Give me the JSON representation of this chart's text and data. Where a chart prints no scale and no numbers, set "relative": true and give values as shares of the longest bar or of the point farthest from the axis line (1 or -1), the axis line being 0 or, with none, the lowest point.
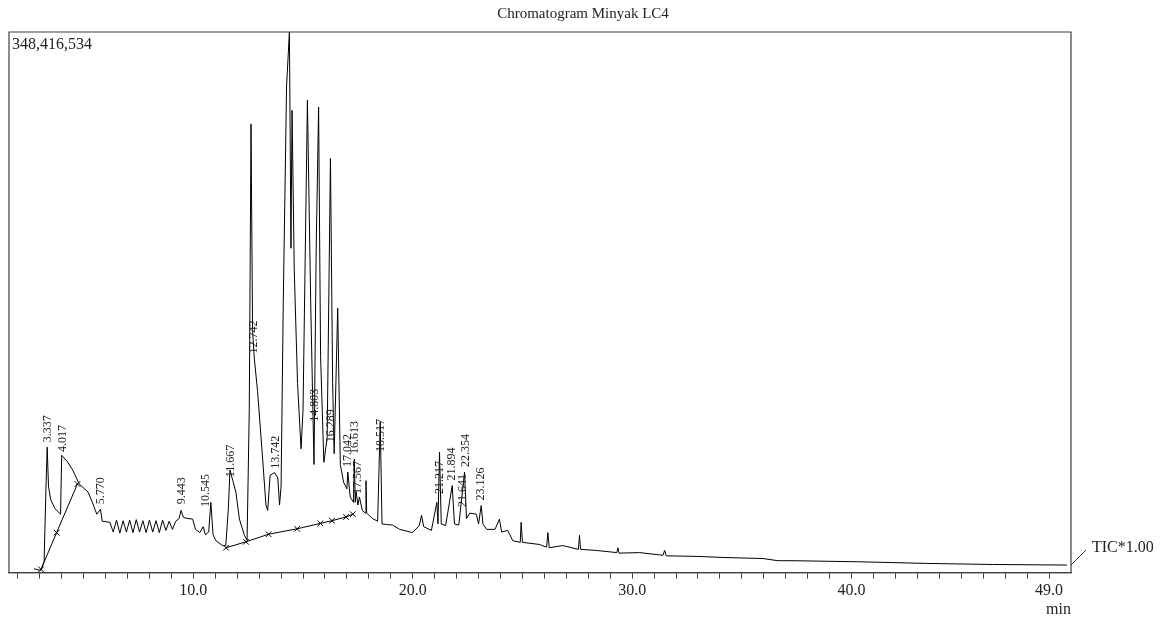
{
  "chart_data": {
    "type": "line",
    "title": "Chromatogram Minyak LC4",
    "xlabel": "min",
    "relative": true,
    "xlim": [
      1.6,
      50
    ],
    "xticks": [
      {
        "value": 2,
        "label": null
      },
      {
        "value": 3,
        "label": null
      },
      {
        "value": 4,
        "label": null
      },
      {
        "value": 5,
        "label": null
      },
      {
        "value": 6,
        "label": null
      },
      {
        "value": 7,
        "label": null
      },
      {
        "value": 8,
        "label": null
      },
      {
        "value": 9,
        "label": null
      },
      {
        "value": 10,
        "label": "10.0"
      },
      {
        "value": 11,
        "label": null
      },
      {
        "value": 12,
        "label": null
      },
      {
        "value": 13,
        "label": null
      },
      {
        "value": 14,
        "label": null
      },
      {
        "value": 15,
        "label": null
      },
      {
        "value": 16,
        "label": null
      },
      {
        "value": 17,
        "label": null
      },
      {
        "value": 18,
        "label": null
      },
      {
        "value": 19,
        "label": null
      },
      {
        "value": 20,
        "label": "20.0"
      },
      {
        "value": 21,
        "label": null
      },
      {
        "value": 22,
        "label": null
      },
      {
        "value": 23,
        "label": null
      },
      {
        "value": 24,
        "label": null
      },
      {
        "value": 25,
        "label": null
      },
      {
        "value": 26,
        "label": null
      },
      {
        "value": 27,
        "label": null
      },
      {
        "value": 28,
        "label": null
      },
      {
        "value": 29,
        "label": null
      },
      {
        "value": 30,
        "label": "30.0"
      },
      {
        "value": 31,
        "label": null
      },
      {
        "value": 32,
        "label": null
      },
      {
        "value": 33,
        "label": null
      },
      {
        "value": 34,
        "label": null
      },
      {
        "value": 35,
        "label": null
      },
      {
        "value": 36,
        "label": null
      },
      {
        "value": 37,
        "label": null
      },
      {
        "value": 38,
        "label": null
      },
      {
        "value": 39,
        "label": null
      },
      {
        "value": 40,
        "label": "40.0"
      },
      {
        "value": 41,
        "label": null
      },
      {
        "value": 42,
        "label": null
      },
      {
        "value": 43,
        "label": null
      },
      {
        "value": 44,
        "label": null
      },
      {
        "value": 45,
        "label": null
      },
      {
        "value": 46,
        "label": null
      },
      {
        "value": 47,
        "label": null
      },
      {
        "value": 48,
        "label": null
      },
      {
        "value": 49,
        "label": "49.0"
      }
    ],
    "series": [
      {
        "name": "TIC*1.00",
        "color": "#000000",
        "x": [
          2.75,
          3.05,
          3.2,
          3.28,
          3.34,
          3.4,
          3.5,
          3.7,
          3.95,
          4.0,
          4.28,
          4.5,
          4.8,
          5.2,
          5.4,
          5.6,
          5.77,
          5.85,
          6.2,
          6.35,
          6.5,
          6.65,
          6.8,
          6.95,
          7.1,
          7.25,
          7.4,
          7.55,
          7.7,
          7.85,
          8.0,
          8.15,
          8.3,
          8.45,
          8.6,
          8.75,
          8.9,
          9.05,
          9.2,
          9.35,
          9.44,
          9.55,
          9.75,
          9.97,
          10.1,
          10.3,
          10.45,
          10.55,
          10.7,
          10.8,
          10.9,
          11.03,
          11.33,
          11.48,
          11.6,
          11.67,
          11.8,
          11.94,
          12.1,
          12.33,
          12.45,
          12.55,
          12.63,
          12.7,
          12.78,
          12.93,
          13.16,
          13.31,
          13.39,
          13.5,
          13.7,
          13.85,
          13.93,
          14.0,
          14.1,
          14.25,
          14.38,
          14.45,
          14.5,
          14.6,
          14.75,
          14.91,
          15.0,
          15.2,
          15.35,
          15.5,
          15.6,
          15.71,
          15.8,
          15.95,
          16.1,
          16.25,
          16.35,
          16.42,
          16.58,
          16.7,
          16.85,
          17.0,
          17.04,
          17.15,
          17.3,
          17.34,
          17.38,
          17.42,
          17.5,
          17.57,
          17.7,
          17.84,
          17.87,
          17.9,
          18.17,
          18.4,
          18.52,
          18.6,
          18.8,
          19.08,
          19.4,
          19.99,
          20.3,
          20.4,
          20.5,
          20.85,
          21.1,
          21.15,
          21.22,
          21.3,
          21.5,
          21.8,
          21.9,
          22.1,
          22.36,
          22.45,
          22.6,
          22.9,
          23.0,
          23.12,
          23.2,
          23.37,
          23.75,
          23.95,
          24.05,
          24.33,
          24.56,
          24.9,
          24.94,
          25.0,
          25.78,
          26.1,
          26.16,
          26.22,
          26.84,
          27.55,
          27.6,
          27.65,
          28.36,
          29.3,
          29.35,
          29.4,
          30.34,
          31.4,
          31.48,
          31.55,
          32.92,
          34.13,
          35.96,
          36.64,
          37.33,
          40.37,
          43.4,
          46.43,
          49.8
        ],
        "values": [
          0.007,
          0.004,
          0.02,
          0.15,
          0.232,
          0.16,
          0.135,
          0.118,
          0.108,
          0.217,
          0.204,
          0.19,
          0.164,
          0.149,
          0.13,
          0.108,
          0.117,
          0.095,
          0.093,
          0.075,
          0.097,
          0.073,
          0.096,
          0.075,
          0.097,
          0.074,
          0.098,
          0.075,
          0.096,
          0.074,
          0.097,
          0.075,
          0.096,
          0.074,
          0.097,
          0.078,
          0.095,
          0.08,
          0.095,
          0.1,
          0.115,
          0.102,
          0.1,
          0.099,
          0.08,
          0.074,
          0.085,
          0.07,
          0.075,
          0.13,
          0.07,
          0.059,
          0.05,
          0.05,
          0.12,
          0.19,
          0.17,
          0.149,
          0.099,
          0.069,
          0.06,
          0.3,
          0.83,
          0.45,
          0.396,
          0.335,
          0.21,
          0.125,
          0.115,
          0.18,
          0.185,
          0.175,
          0.125,
          0.16,
          0.5,
          0.9,
          1,
          0.6,
          0.855,
          0.56,
          0.35,
          0.229,
          0.3,
          0.874,
          0.5,
          0.2,
          0.6,
          0.861,
          0.4,
          0.204,
          0.25,
          0.766,
          0.35,
          0.22,
          0.489,
          0.2,
          0.167,
          0.155,
          0.186,
          0.14,
          0.13,
          0.21,
          0.13,
          0.15,
          0.125,
          0.14,
          0.115,
          0.11,
          0.17,
          0.11,
          0.1,
          0.095,
          0.279,
          0.09,
          0.089,
          0.088,
          0.08,
          0.074,
          0.087,
          0.106,
          0.085,
          0.078,
          0.13,
          0.09,
          0.223,
          0.09,
          0.087,
          0.161,
          0.09,
          0.088,
          0.186,
          0.1,
          0.11,
          0.108,
          0.09,
          0.124,
          0.09,
          0.08,
          0.08,
          0.099,
          0.075,
          0.078,
          0.059,
          0.056,
          0.093,
          0.056,
          0.052,
          0.047,
          0.074,
          0.046,
          0.05,
          0.043,
          0.069,
          0.043,
          0.041,
          0.037,
          0.046,
          0.036,
          0.037,
          0.032,
          0.041,
          0.031,
          0.03,
          0.028,
          0.026,
          0.022,
          0.022,
          0.02,
          0.017,
          0.015,
          0.014
        ]
      },
      {
        "color": "#000000",
        "marker": "cross",
        "x": [
          3.06,
          3.77,
          4.72,
          8.0,
          11.49,
          12.4,
          13.43,
          14.73,
          15.79,
          16.32,
          16.96,
          17.27
        ],
        "values": [
          0.006,
          0.074,
          0.164,
          null,
          0.046,
          0.057,
          0.071,
          0.081,
          0.091,
          0.096,
          0.103,
          0.108
        ]
      }
    ],
    "annotations": [
      "348,416,534",
      {
        "text": "3.337",
        "x": 3.36,
        "y": 0.232
      },
      {
        "text": "4.017",
        "x": 4.04,
        "y": 0.214
      },
      {
        "text": "5.770",
        "x": 5.77,
        "y": 0.117
      },
      {
        "text": "9.443",
        "x": 9.48,
        "y": 0.117
      },
      {
        "text": "10.545",
        "x": 10.55,
        "y": 0.112
      },
      {
        "text": "11.667",
        "x": 11.72,
        "y": 0.167
      },
      {
        "text": "12.742",
        "x": 12.78,
        "y": 0.396
      },
      {
        "text": "13.742",
        "x": 13.77,
        "y": 0.183
      },
      {
        "text": "14.803",
        "x": 15.52,
        "y": 0.27
      },
      {
        "text": "16.289",
        "x": 16.28,
        "y": 0.232
      },
      {
        "text": "17.042",
        "x": 17.04,
        "y": 0.186
      },
      {
        "text": "16.613",
        "x": 17.34,
        "y": 0.21
      },
      {
        "text": "17.567",
        "x": 17.49,
        "y": 0.136
      },
      {
        "text": "18.517",
        "x": 18.56,
        "y": 0.214
      },
      {
        "text": "21.217",
        "x": 21.22,
        "y": 0.136
      },
      {
        "text": "21.894",
        "x": 21.8,
        "y": 0.161
      },
      {
        "text": "21.641",
        "x": 22.3,
        "y": 0.112
      },
      {
        "text": "22.354",
        "x": 22.42,
        "y": 0.186
      },
      {
        "text": "23.126",
        "x": 23.12,
        "y": 0.124
      }
    ]
  }
}
